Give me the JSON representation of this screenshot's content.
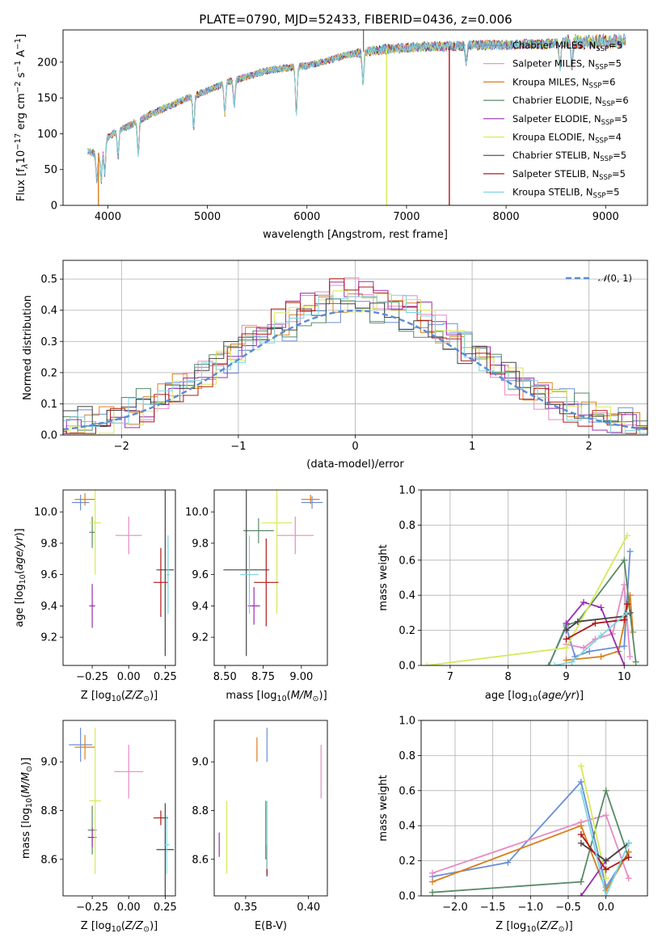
{
  "figure": {
    "title": "PLATE=0790, MJD=52433, FIBERID=0436, z=0.006"
  },
  "models": [
    {
      "name": "Chabrier MILES",
      "nssp": "5",
      "color": "#6a8ed8"
    },
    {
      "name": "Salpeter MILES",
      "nssp": "5",
      "color": "#e78ac3"
    },
    {
      "name": "Kroupa MILES",
      "nssp": "6",
      "color": "#d97f1e"
    },
    {
      "name": "Chabrier ELODIE",
      "nssp": "6",
      "color": "#5a8a66"
    },
    {
      "name": "Salpeter ELODIE",
      "nssp": "5",
      "color": "#9a2db0"
    },
    {
      "name": "Kroupa ELODIE",
      "nssp": "4",
      "color": "#d6ea5a"
    },
    {
      "name": "Chabrier STELIB",
      "nssp": "5",
      "color": "#444444"
    },
    {
      "name": "Salpeter STELIB",
      "nssp": "5",
      "color": "#b01818"
    },
    {
      "name": "Kroupa STELIB",
      "nssp": "5",
      "color": "#7ed6e0"
    }
  ],
  "chart_data": [
    {
      "id": "spectrum",
      "type": "line",
      "xlabel": "wavelength [Angstrom, rest frame]",
      "ylabel": "Flux [f_λ 10^-17 erg cm^-2 s^-1 A^-1]",
      "xlim": [
        3550,
        9420
      ],
      "ylim": [
        0,
        245
      ],
      "xticks": [
        4000,
        5000,
        6000,
        7000,
        8000,
        9000
      ],
      "yticks": [
        0,
        50,
        100,
        150,
        200
      ],
      "grid": false,
      "legend_position": "right",
      "spectrum_continuum": {
        "x": [
          3800,
          3900,
          4000,
          4100,
          4200,
          4400,
          4600,
          4800,
          5000,
          5200,
          5400,
          5600,
          5800,
          6000,
          6200,
          6400,
          6600,
          6800,
          7000,
          7200,
          7400,
          7600,
          7800,
          8000,
          8200,
          8400,
          8600,
          8800,
          9000,
          9200
        ],
        "y": [
          75,
          72,
          95,
          105,
          110,
          125,
          138,
          150,
          160,
          172,
          180,
          188,
          192,
          195,
          202,
          210,
          215,
          218,
          220,
          222,
          222,
          223,
          224,
          224,
          225,
          225,
          228,
          228,
          229,
          230
        ]
      },
      "features": [
        {
          "x": 3890,
          "depth": 0.55
        },
        {
          "x": 3933,
          "depth": 0.6
        },
        {
          "x": 3968,
          "depth": 0.5
        },
        {
          "x": 4102,
          "depth": 0.35
        },
        {
          "x": 4305,
          "depth": 0.4
        },
        {
          "x": 4861,
          "depth": 0.3
        },
        {
          "x": 5175,
          "depth": 0.25
        },
        {
          "x": 5270,
          "depth": 0.2
        },
        {
          "x": 5893,
          "depth": 0.35
        },
        {
          "x": 6563,
          "depth": 0.2
        },
        {
          "x": 7600,
          "depth": 0.1
        },
        {
          "x": 8542,
          "depth": 0.15
        },
        {
          "x": 8662,
          "depth": 0.15
        }
      ],
      "spikes_down": [
        {
          "x": 3905,
          "y_low": 0,
          "color": "#d97f1e"
        },
        {
          "x": 6800,
          "y_low": 0,
          "color": "#d6ea5a"
        },
        {
          "x": 7430,
          "y_low": 0,
          "color": "#b01818"
        }
      ],
      "spikes_up": [
        {
          "x": 6568,
          "y_high": 245,
          "color": "#444444"
        }
      ]
    },
    {
      "id": "residuals",
      "type": "histogram",
      "xlabel": "(data-model)/error",
      "ylabel": "Normed distribution",
      "xlim": [
        -2.5,
        2.5
      ],
      "ylim": [
        0,
        0.56
      ],
      "xticks": [
        -2,
        -1,
        0,
        1,
        2
      ],
      "yticks": [
        0.0,
        0.1,
        0.2,
        0.3,
        0.4,
        0.5
      ],
      "grid": true,
      "reference_curve": {
        "label": "N(0,1)",
        "type": "gaussian",
        "mu": 0,
        "sigma": 1,
        "color": "#5b8bd6"
      },
      "bin_width": 0.125
    },
    {
      "id": "age_vs_Z",
      "type": "errorbar",
      "xlabel": "Z [log10(Z/Z_sun)]",
      "ylabel": "age  [log10(age/yr)]",
      "xlim": [
        -0.45,
        0.32
      ],
      "ylim": [
        9.02,
        10.14
      ],
      "xticks": [
        -0.25,
        0.0,
        0.25
      ],
      "yticks": [
        9.2,
        9.4,
        9.6,
        9.8,
        10.0
      ],
      "points": [
        {
          "model": 0,
          "x": -0.33,
          "xerr": 0.06,
          "y": 10.06,
          "yerr": 0.05
        },
        {
          "model": 1,
          "x": 0.0,
          "xerr": 0.09,
          "y": 9.85,
          "yerr": 0.12
        },
        {
          "model": 2,
          "x": -0.3,
          "xerr": 0.07,
          "y": 10.08,
          "yerr": 0.04
        },
        {
          "model": 3,
          "x": -0.25,
          "xerr": 0.02,
          "y": 9.87,
          "yerr": 0.1
        },
        {
          "model": 4,
          "x": -0.25,
          "xerr": 0.02,
          "y": 9.4,
          "yerr": 0.14
        },
        {
          "model": 5,
          "x": -0.23,
          "xerr": 0.04,
          "y": 9.93,
          "yerr": 0.33
        },
        {
          "model": 6,
          "x": 0.25,
          "xerr": 0.06,
          "y": 9.63,
          "yerr": 0.55
        },
        {
          "model": 7,
          "x": 0.22,
          "xerr": 0.05,
          "y": 9.55,
          "yerr": 0.22
        },
        {
          "model": 8,
          "x": 0.27,
          "xerr": 0.01,
          "y": 9.6,
          "yerr": 0.25
        }
      ]
    },
    {
      "id": "age_vs_mass",
      "type": "errorbar",
      "xlabel": "mass [log10(M/M_sun)]",
      "ylabel": "",
      "xlim": [
        8.43,
        9.17
      ],
      "ylim": [
        9.02,
        10.14
      ],
      "xticks": [
        8.5,
        8.75,
        9.0
      ],
      "yticks": [
        9.2,
        9.4,
        9.6,
        9.8,
        10.0
      ],
      "points": [
        {
          "model": 0,
          "x": 9.07,
          "xerr": 0.07,
          "y": 10.06,
          "yerr": 0.04
        },
        {
          "model": 1,
          "x": 8.96,
          "xerr": 0.12,
          "y": 9.85,
          "yerr": 0.12
        },
        {
          "model": 2,
          "x": 9.06,
          "xerr": 0.06,
          "y": 10.08,
          "yerr": 0.03
        },
        {
          "model": 3,
          "x": 8.72,
          "xerr": 0.1,
          "y": 9.88,
          "yerr": 0.08
        },
        {
          "model": 4,
          "x": 8.69,
          "xerr": 0.04,
          "y": 9.4,
          "yerr": 0.12
        },
        {
          "model": 5,
          "x": 8.84,
          "xerr": 0.1,
          "y": 9.93,
          "yerr": 0.58
        },
        {
          "model": 6,
          "x": 8.64,
          "xerr": 0.15,
          "y": 9.63,
          "yerr": 0.55
        },
        {
          "model": 7,
          "x": 8.77,
          "xerr": 0.08,
          "y": 9.55,
          "yerr": 0.28
        },
        {
          "model": 8,
          "x": 8.66,
          "xerr": 0.06,
          "y": 9.6,
          "yerr": 0.25
        }
      ]
    },
    {
      "id": "massweight_vs_age",
      "type": "line",
      "xlabel": "age  [log10(age/yr)]",
      "ylabel": "mass weight",
      "xlim": [
        6.5,
        10.4
      ],
      "ylim": [
        0,
        1.0
      ],
      "xticks": [
        7,
        8,
        9,
        10
      ],
      "yticks": [
        0.0,
        0.2,
        0.4,
        0.6,
        0.8,
        1.0
      ],
      "grid": true,
      "series": [
        {
          "model": 0,
          "x": [
            8.7,
            9.0,
            9.15,
            9.4,
            10.0,
            10.1
          ],
          "y": [
            0.0,
            0.22,
            0.05,
            0.08,
            0.11,
            0.65
          ]
        },
        {
          "model": 1,
          "x": [
            9.0,
            9.3,
            9.5,
            9.8,
            10.0,
            10.1
          ],
          "y": [
            0.12,
            0.1,
            0.15,
            0.18,
            0.46,
            0.05
          ]
        },
        {
          "model": 2,
          "x": [
            9.0,
            9.6,
            9.9,
            10.1,
            10.15
          ],
          "y": [
            0.03,
            0.05,
            0.08,
            0.4,
            0.19
          ]
        },
        {
          "model": 3,
          "x": [
            8.7,
            9.0,
            9.2,
            10.0,
            10.1,
            10.2
          ],
          "y": [
            0.0,
            0.23,
            0.25,
            0.6,
            0.3,
            0.02
          ]
        },
        {
          "model": 4,
          "x": [
            9.0,
            9.3,
            9.6,
            10.0
          ],
          "y": [
            0.24,
            0.36,
            0.33,
            0.0
          ]
        },
        {
          "model": 5,
          "x": [
            6.6,
            9.0,
            10.05
          ],
          "y": [
            0.0,
            0.1,
            0.74
          ]
        },
        {
          "model": 6,
          "x": [
            9.0,
            9.2,
            10.0,
            10.1
          ],
          "y": [
            0.2,
            0.25,
            0.28,
            0.3
          ]
        },
        {
          "model": 7,
          "x": [
            9.0,
            9.5,
            10.0,
            10.05
          ],
          "y": [
            0.15,
            0.24,
            0.26,
            0.35
          ]
        },
        {
          "model": 8,
          "x": [
            8.8,
            9.1,
            9.6,
            10.05
          ],
          "y": [
            0.0,
            0.02,
            0.17,
            0.3
          ]
        }
      ]
    },
    {
      "id": "mass_vs_Z",
      "type": "errorbar",
      "xlabel": "Z [log10(Z/Z_sun)]",
      "ylabel": "mass [log10(M/M_sun)]",
      "xlim": [
        -0.45,
        0.32
      ],
      "ylim": [
        8.45,
        9.17
      ],
      "xticks": [
        -0.25,
        0.0,
        0.25
      ],
      "yticks": [
        8.6,
        8.8,
        9.0
      ],
      "points": [
        {
          "model": 0,
          "x": -0.33,
          "xerr": 0.08,
          "y": 9.07,
          "yerr": 0.07
        },
        {
          "model": 1,
          "x": 0.0,
          "xerr": 0.1,
          "y": 8.96,
          "yerr": 0.11
        },
        {
          "model": 2,
          "x": -0.3,
          "xerr": 0.07,
          "y": 9.06,
          "yerr": 0.05
        },
        {
          "model": 3,
          "x": -0.25,
          "xerr": 0.03,
          "y": 8.72,
          "yerr": 0.1
        },
        {
          "model": 4,
          "x": -0.25,
          "xerr": 0.03,
          "y": 8.69,
          "yerr": 0.04
        },
        {
          "model": 5,
          "x": -0.23,
          "xerr": 0.04,
          "y": 8.84,
          "yerr": 0.3
        },
        {
          "model": 6,
          "x": 0.25,
          "xerr": 0.06,
          "y": 8.64,
          "yerr": 0.19
        },
        {
          "model": 7,
          "x": 0.22,
          "xerr": 0.05,
          "y": 8.77,
          "yerr": 0.03
        },
        {
          "model": 8,
          "x": 0.26,
          "xerr": 0.02,
          "y": 8.66,
          "yerr": 0.12
        }
      ]
    },
    {
      "id": "mass_vs_EBV",
      "type": "errorbar",
      "xlabel": "E(B-V)",
      "ylabel": "",
      "xlim": [
        0.325,
        0.415
      ],
      "ylim": [
        8.45,
        9.17
      ],
      "xticks": [
        0.35,
        0.4
      ],
      "yticks": [
        8.6,
        8.8,
        9.0
      ],
      "points": [
        {
          "model": 0,
          "x": 0.367,
          "xerr": 0.0,
          "y": 9.07,
          "yerr": 0.07
        },
        {
          "model": 1,
          "x": 0.41,
          "xerr": 0.0,
          "y": 8.96,
          "yerr": 0.11
        },
        {
          "model": 2,
          "x": 0.359,
          "xerr": 0.0,
          "y": 9.05,
          "yerr": 0.05
        },
        {
          "model": 3,
          "x": 0.366,
          "xerr": 0.0,
          "y": 8.72,
          "yerr": 0.12
        },
        {
          "model": 4,
          "x": 0.329,
          "xerr": 0.0,
          "y": 8.66,
          "yerr": 0.05
        },
        {
          "model": 5,
          "x": 0.335,
          "xerr": 0.0,
          "y": 8.69,
          "yerr": 0.15
        },
        {
          "model": 6,
          "x": 0.367,
          "xerr": 0.0,
          "y": 8.57,
          "yerr": 0.04
        },
        {
          "model": 7,
          "x": 0.367,
          "xerr": 0.0,
          "y": 8.6,
          "yerr": 0.06
        },
        {
          "model": 8,
          "x": 0.367,
          "xerr": 0.0,
          "y": 8.7,
          "yerr": 0.14
        }
      ]
    },
    {
      "id": "massweight_vs_Z",
      "type": "line",
      "xlabel": "Z [log10(Z/Z_sun)]",
      "ylabel": "mass weight",
      "xlim": [
        -2.45,
        0.55
      ],
      "ylim": [
        0,
        1.0
      ],
      "xticks": [
        -2.0,
        -1.5,
        -1.0,
        -0.5,
        0.0
      ],
      "yticks": [
        0.0,
        0.2,
        0.4,
        0.6,
        0.8,
        1.0
      ],
      "grid": true,
      "series": [
        {
          "model": 0,
          "x": [
            -2.3,
            -1.3,
            -0.33,
            0.0,
            0.3
          ],
          "y": [
            0.11,
            0.19,
            0.65,
            0.05,
            0.25
          ]
        },
        {
          "model": 1,
          "x": [
            -2.3,
            -0.33,
            0.0,
            0.3
          ],
          "y": [
            0.13,
            0.42,
            0.46,
            0.1
          ]
        },
        {
          "model": 2,
          "x": [
            -2.3,
            -0.33,
            0.0,
            0.3
          ],
          "y": [
            0.08,
            0.4,
            0.03,
            0.25
          ]
        },
        {
          "model": 3,
          "x": [
            -2.3,
            -0.33,
            0.0,
            0.3
          ],
          "y": [
            0.02,
            0.08,
            0.6,
            0.22
          ]
        },
        {
          "model": 4,
          "x": [
            -0.33,
            0.0,
            0.3
          ],
          "y": [
            0.0,
            0.2,
            0.3
          ]
        },
        {
          "model": 5,
          "x": [
            -0.33,
            0.0
          ],
          "y": [
            0.74,
            0.1
          ]
        },
        {
          "model": 6,
          "x": [
            -0.33,
            0.0,
            0.3
          ],
          "y": [
            0.3,
            0.2,
            0.3
          ]
        },
        {
          "model": 7,
          "x": [
            -0.33,
            0.0,
            0.3
          ],
          "y": [
            0.35,
            0.15,
            0.22
          ]
        },
        {
          "model": 8,
          "x": [
            -0.33,
            0.0,
            0.3
          ],
          "y": [
            0.6,
            0.0,
            0.3
          ]
        }
      ]
    }
  ]
}
